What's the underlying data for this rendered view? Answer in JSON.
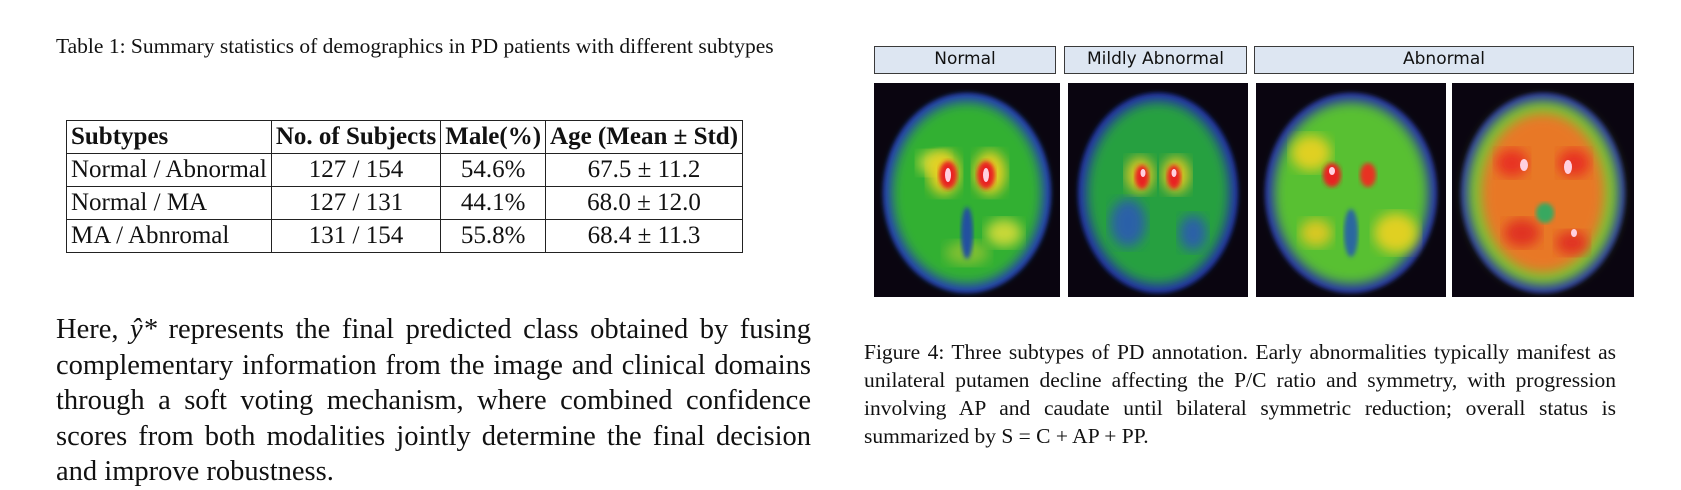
{
  "table": {
    "caption": "Table 1: Summary statistics of demographics in PD patients with different subtypes",
    "headers": [
      "Subtypes",
      "No. of Subjects",
      "Male(%)",
      "Age (Mean ± Std)"
    ],
    "rows": [
      [
        "Normal / Abnormal",
        "127 / 154",
        "54.6%",
        "67.5 ± 11.2"
      ],
      [
        "Normal / MA",
        "127 / 131",
        "44.1%",
        "68.0 ± 12.0"
      ],
      [
        "MA / Abnromal",
        "131 / 154",
        "55.8%",
        "68.4 ± 11.3"
      ]
    ]
  },
  "body": {
    "prefix": "Here, ",
    "math": "ŷ*",
    "text": " represents the final predicted class obtained by fusing complementary information from the image and clinical domains through a soft voting mechanism, where combined confidence scores from both modalities jointly determine the final decision and improve robustness."
  },
  "figure": {
    "headers": [
      "Normal",
      "Mildly Abnormal",
      "Abnormal"
    ],
    "caption": "Figure 4: Three subtypes of PD annotation. Early abnormalities typically manifest as unilateral putamen decline affecting the P/C ratio and symmetry, with progression involving AP and caudate until bilateral symmetric reduction; overall status is summarized by S = C + AP + PP."
  }
}
